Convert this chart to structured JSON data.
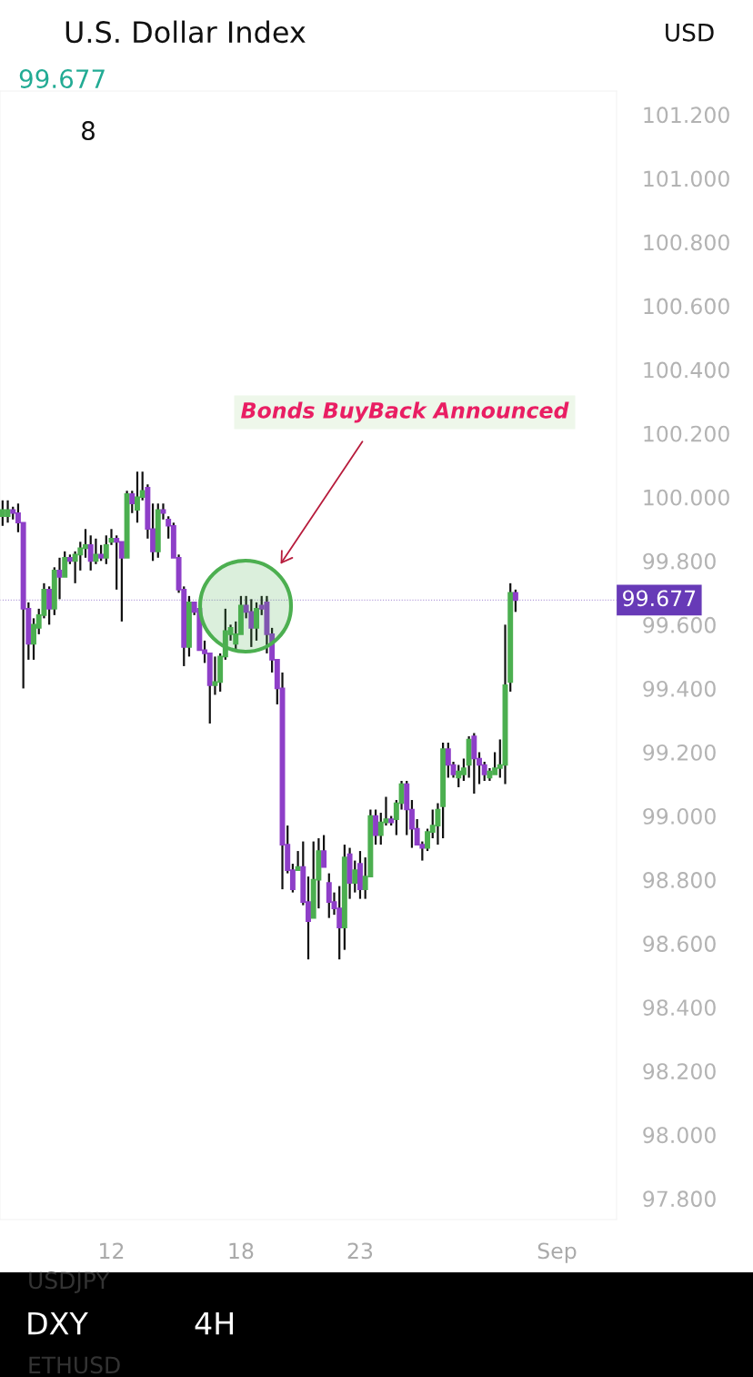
{
  "chart_data": {
    "type": "candlestick",
    "title": "U.S. Dollar Index",
    "subtitle": "99.677",
    "categories": [
      null,
      null,
      null,
      null,
      null,
      null,
      null,
      null,
      null,
      null,
      null,
      null,
      null,
      null,
      null,
      null,
      null,
      null,
      null,
      null,
      null,
      "12",
      null,
      null,
      null,
      null,
      null,
      null,
      null,
      null,
      null,
      null,
      null,
      null,
      null,
      null,
      null,
      null,
      null,
      null,
      null,
      null,
      null,
      null,
      null,
      null,
      "18",
      null,
      null,
      null,
      null,
      null,
      null,
      null,
      null,
      null,
      null,
      null,
      null,
      null,
      null,
      null,
      null,
      null,
      null,
      null,
      null,
      null,
      null,
      "23",
      null,
      null,
      null,
      null,
      null,
      null,
      null,
      null,
      null,
      null,
      null,
      null,
      null,
      null,
      null,
      null,
      null,
      null,
      null,
      null,
      null,
      null,
      null,
      null,
      null,
      null,
      null,
      null,
      null,
      null,
      null,
      null,
      null,
      null,
      null,
      null,
      null,
      "Sep",
      null,
      null,
      null,
      null,
      null,
      null,
      null,
      null,
      null,
      null,
      null
    ],
    "ohlc": [
      [
        99.94,
        99.99,
        99.91,
        99.96
      ],
      [
        99.94,
        99.99,
        99.92,
        99.96
      ],
      [
        99.96,
        99.97,
        99.93,
        99.95
      ],
      [
        99.95,
        99.98,
        99.89,
        99.92
      ],
      [
        99.92,
        99.92,
        99.4,
        99.65
      ],
      [
        99.65,
        99.67,
        99.49,
        99.54
      ],
      [
        99.54,
        99.62,
        99.49,
        99.6
      ],
      [
        99.59,
        99.65,
        99.57,
        99.63
      ],
      [
        99.63,
        99.73,
        99.62,
        99.71
      ],
      [
        99.71,
        99.72,
        99.6,
        99.65
      ],
      [
        99.65,
        99.78,
        99.63,
        99.77
      ],
      [
        99.77,
        99.81,
        99.68,
        99.75
      ],
      [
        99.75,
        99.83,
        99.75,
        99.81
      ],
      [
        99.81,
        99.82,
        99.79,
        99.8
      ],
      [
        99.8,
        99.83,
        99.73,
        99.82
      ],
      [
        99.82,
        99.86,
        99.77,
        99.84
      ],
      [
        99.84,
        99.9,
        99.81,
        99.85
      ],
      [
        99.85,
        99.88,
        99.77,
        99.8
      ],
      [
        99.8,
        99.87,
        99.79,
        99.82
      ],
      [
        99.82,
        99.85,
        99.8,
        99.81
      ],
      [
        99.81,
        99.88,
        99.79,
        99.85
      ],
      [
        99.86,
        99.9,
        99.85,
        99.87
      ],
      [
        99.87,
        99.88,
        99.71,
        99.86
      ],
      [
        99.86,
        99.86,
        99.61,
        99.81
      ],
      [
        99.81,
        100.02,
        99.81,
        100.01
      ],
      [
        100.01,
        100.02,
        99.95,
        99.98
      ],
      [
        99.96,
        100.08,
        99.92,
        100.0
      ],
      [
        100.0,
        100.08,
        99.99,
        100.02
      ],
      [
        100.03,
        100.04,
        99.87,
        99.9
      ],
      [
        99.9,
        99.98,
        99.8,
        99.83
      ],
      [
        99.83,
        99.98,
        99.81,
        99.96
      ],
      [
        99.96,
        99.98,
        99.93,
        99.95
      ],
      [
        99.93,
        99.94,
        99.87,
        99.91
      ],
      [
        99.91,
        99.92,
        99.81,
        99.81
      ],
      [
        99.81,
        99.82,
        99.7,
        99.71
      ],
      [
        99.71,
        99.72,
        99.47,
        99.53
      ],
      [
        99.53,
        99.69,
        99.5,
        99.67
      ],
      [
        99.67,
        99.67,
        99.63,
        99.64
      ],
      [
        99.65,
        99.66,
        99.52,
        99.52
      ],
      [
        99.52,
        99.55,
        99.48,
        99.51
      ],
      [
        99.51,
        99.51,
        99.29,
        99.41
      ],
      [
        99.41,
        99.5,
        99.38,
        99.42
      ],
      [
        99.42,
        99.51,
        99.39,
        99.5
      ],
      [
        99.5,
        99.65,
        99.49,
        99.58
      ],
      [
        99.57,
        99.6,
        99.55,
        99.59
      ],
      [
        99.54,
        99.61,
        99.52,
        99.57
      ],
      [
        99.57,
        99.69,
        99.57,
        99.66
      ],
      [
        99.66,
        99.69,
        99.62,
        99.64
      ],
      [
        99.64,
        99.68,
        99.53,
        99.59
      ],
      [
        99.59,
        99.67,
        99.55,
        99.65
      ],
      [
        99.66,
        99.69,
        99.63,
        99.65
      ],
      [
        99.67,
        99.69,
        99.51,
        99.57
      ],
      [
        99.57,
        99.59,
        99.45,
        99.49
      ],
      [
        99.49,
        99.49,
        99.35,
        99.4
      ],
      [
        99.4,
        99.45,
        98.77,
        98.91
      ],
      [
        98.91,
        98.97,
        98.82,
        98.83
      ],
      [
        98.83,
        98.85,
        98.76,
        98.77
      ],
      [
        98.83,
        98.89,
        98.83,
        98.84
      ],
      [
        98.84,
        98.92,
        98.72,
        98.73
      ],
      [
        98.73,
        98.81,
        98.55,
        98.67
      ],
      [
        98.68,
        98.92,
        98.68,
        98.8
      ],
      [
        98.8,
        98.93,
        98.71,
        98.89
      ],
      [
        98.89,
        98.94,
        98.84,
        98.84
      ],
      [
        98.79,
        98.82,
        98.68,
        98.73
      ],
      [
        98.73,
        98.76,
        98.69,
        98.71
      ],
      [
        98.71,
        98.78,
        98.55,
        98.65
      ],
      [
        98.65,
        98.91,
        98.58,
        98.87
      ],
      [
        98.88,
        98.9,
        98.74,
        98.79
      ],
      [
        98.79,
        98.86,
        98.76,
        98.83
      ],
      [
        98.85,
        98.89,
        98.74,
        98.77
      ],
      [
        98.77,
        98.87,
        98.74,
        98.81
      ],
      [
        98.81,
        99.02,
        98.81,
        99.0
      ],
      [
        99.0,
        99.02,
        98.91,
        98.94
      ],
      [
        98.94,
        99.01,
        98.91,
        98.98
      ],
      [
        98.98,
        99.06,
        98.97,
        98.99
      ],
      [
        98.99,
        99.0,
        98.97,
        98.98
      ],
      [
        98.99,
        99.05,
        98.94,
        99.04
      ],
      [
        99.04,
        99.11,
        99.02,
        99.1
      ],
      [
        99.1,
        99.11,
        98.94,
        99.02
      ],
      [
        99.02,
        99.05,
        98.9,
        98.96
      ],
      [
        98.96,
        98.99,
        98.91,
        98.91
      ],
      [
        98.91,
        98.92,
        98.86,
        98.9
      ],
      [
        98.9,
        98.96,
        98.89,
        98.95
      ],
      [
        98.95,
        99.02,
        98.93,
        98.97
      ],
      [
        98.97,
        99.04,
        98.91,
        99.02
      ],
      [
        99.03,
        99.23,
        98.93,
        99.21
      ],
      [
        99.21,
        99.23,
        99.12,
        99.16
      ],
      [
        99.16,
        99.17,
        99.12,
        99.13
      ],
      [
        99.12,
        99.16,
        99.09,
        99.14
      ],
      [
        99.13,
        99.18,
        99.11,
        99.15
      ],
      [
        99.16,
        99.25,
        99.12,
        99.24
      ],
      [
        99.25,
        99.26,
        99.07,
        99.18
      ],
      [
        99.18,
        99.2,
        99.1,
        99.16
      ],
      [
        99.16,
        99.17,
        99.11,
        99.13
      ],
      [
        99.12,
        99.15,
        99.11,
        99.14
      ],
      [
        99.13,
        99.2,
        99.13,
        99.15
      ],
      [
        99.15,
        99.24,
        99.12,
        99.16
      ],
      [
        99.16,
        99.6,
        99.1,
        99.41
      ],
      [
        99.42,
        99.73,
        99.39,
        99.7
      ],
      [
        99.7,
        99.71,
        99.64,
        99.677
      ],
      null,
      null,
      null,
      null,
      null,
      null,
      null,
      null,
      null,
      null,
      null,
      null,
      null,
      null,
      null,
      null,
      null,
      null,
      null
    ],
    "colors": [
      "#4caf50",
      "#4caf50",
      "#8e3fc8",
      "#8e3fc8",
      "#8e3fc8",
      "#8e3fc8",
      "#4caf50",
      "#4caf50",
      "#4caf50",
      "#8e3fc8",
      "#4caf50",
      "#8e3fc8",
      "#4caf50",
      "#8e3fc8",
      "#4caf50",
      "#4caf50",
      "#4caf50",
      "#8e3fc8",
      "#4caf50",
      "#8e3fc8",
      "#4caf50",
      "#4caf50",
      "#8e3fc8",
      "#8e3fc8",
      "#4caf50",
      "#8e3fc8",
      "#4caf50",
      "#4caf50",
      "#8e3fc8",
      "#8e3fc8",
      "#4caf50",
      "#8e3fc8",
      "#8e3fc8",
      "#8e3fc8",
      "#8e3fc8",
      "#8e3fc8",
      "#4caf50",
      "#8e3fc8",
      "#8e3fc8",
      "#8e3fc8",
      "#8e3fc8",
      "#4caf50",
      "#4caf50",
      "#4caf50",
      "#4caf50",
      "#4caf50",
      "#4caf50",
      "#8e3fc8",
      "#8e3fc8",
      "#4caf50",
      "#8e3fc8",
      "#8e3fc8",
      "#8e3fc8",
      "#8e3fc8",
      "#8e3fc8",
      "#8e3fc8",
      "#8e3fc8",
      "#4caf50",
      "#8e3fc8",
      "#8e3fc8",
      "#4caf50",
      "#4caf50",
      "#8e3fc8",
      "#8e3fc8",
      "#8e3fc8",
      "#8e3fc8",
      "#4caf50",
      "#8e3fc8",
      "#4caf50",
      "#8e3fc8",
      "#4caf50",
      "#4caf50",
      "#8e3fc8",
      "#4caf50",
      "#4caf50",
      "#8e3fc8",
      "#4caf50",
      "#4caf50",
      "#8e3fc8",
      "#8e3fc8",
      "#8e3fc8",
      "#8e3fc8",
      "#4caf50",
      "#4caf50",
      "#4caf50",
      "#4caf50",
      "#8e3fc8",
      "#8e3fc8",
      "#4caf50",
      "#4caf50",
      "#4caf50",
      "#8e3fc8",
      "#8e3fc8",
      "#8e3fc8",
      "#4caf50",
      "#4caf50",
      "#4caf50",
      "#4caf50",
      "#4caf50",
      "#8e3fc8",
      null,
      null,
      null,
      null,
      null,
      null,
      null,
      null,
      null,
      null,
      null,
      null,
      null,
      null,
      null,
      null,
      null,
      null,
      null
    ],
    "ylim": [
      97.734,
      101.274
    ],
    "yticks": [
      {
        "value": 97.8,
        "label": "97.800"
      },
      {
        "value": 98.0,
        "label": "98.000"
      },
      {
        "value": 98.2,
        "label": "98.200"
      },
      {
        "value": 98.4,
        "label": "98.400"
      },
      {
        "value": 98.6,
        "label": "98.600"
      },
      {
        "value": 98.8,
        "label": "98.800"
      },
      {
        "value": 99.0,
        "label": "99.000"
      },
      {
        "value": 99.2,
        "label": "99.200"
      },
      {
        "value": 99.4,
        "label": "99.400"
      },
      {
        "value": 99.6,
        "label": "99.600"
      },
      {
        "value": 99.8,
        "label": "99.800"
      },
      {
        "value": 100.0,
        "label": "100.000"
      },
      {
        "value": 100.2,
        "label": "100.200"
      },
      {
        "value": 100.4,
        "label": "100.400"
      },
      {
        "value": 100.6,
        "label": "100.600"
      },
      {
        "value": 100.8,
        "label": "100.800"
      },
      {
        "value": 101.0,
        "label": "101.000"
      },
      {
        "value": 101.2,
        "label": "101.200"
      }
    ],
    "ref_lines": [
      {
        "axis": "y",
        "value": 99.677,
        "label": "99.677",
        "color": "#673ab7"
      }
    ],
    "annotations": [
      "Bonds BuyBack Announced",
      "8",
      "USD",
      "DXY",
      "4H",
      "USDJPY",
      "ETHUSD"
    ]
  }
}
